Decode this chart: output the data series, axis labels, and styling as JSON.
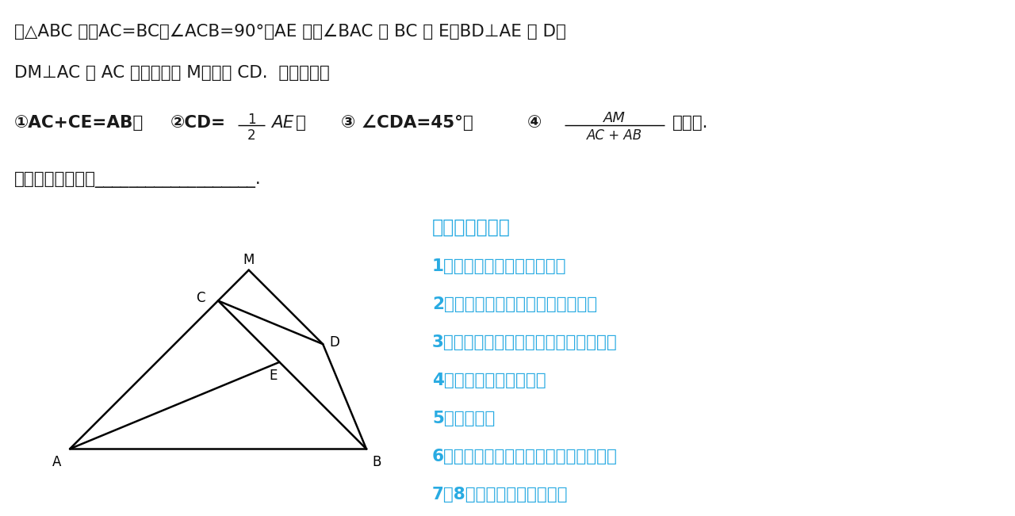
{
  "bg_color": "#ffffff",
  "text_color": "#1a1a1a",
  "cyan_color": "#29ABE2",
  "title_line1": "在△ABC 中，AC=BC，∠ACB=90°，AE 平分∠BAC 交 BC 于 E，BD⊥AE 于 D，",
  "title_line2": "DM⊥AC 交 AC 的延长线于 M，连接 CD.  下列结论：",
  "conclusion_line": "其中正确的结论有___________________.",
  "notes_title": "必备关联知识点",
  "notes": [
    "1、角平分线辅助线，双垂直",
    "2、角平分线辅助线，延长对称全等",
    "3、直角三角形，斜边中线等于斜边一半",
    "4、等腰三角形三线合一",
    "5、勾股定理",
    "6、等腰直角三角形，两直角边构造全等",
    "7、8字形找等角或四点共圆"
  ],
  "fig_width": 12.8,
  "fig_height": 6.51,
  "dpi": 100
}
